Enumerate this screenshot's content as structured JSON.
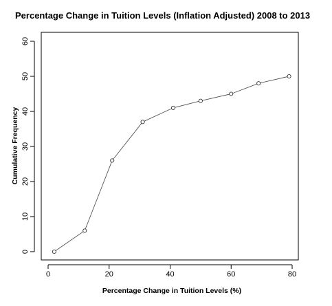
{
  "chart_data": {
    "type": "line",
    "title": "Percentage Change in Tuition Levels (Inflation Adjusted) 2008 to 2013",
    "xlabel": "Percentage Change in Tuition Levels (%)",
    "ylabel": "Cumulative Frequency",
    "xlim": [
      0,
      80
    ],
    "ylim": [
      0,
      60
    ],
    "x_ticks": [
      "0",
      "20",
      "40",
      "60",
      "80"
    ],
    "y_ticks": [
      "0",
      "10",
      "20",
      "30",
      "40",
      "50",
      "60"
    ],
    "grid": false,
    "marker": "open-circle",
    "series": [
      {
        "x": [
          2,
          12,
          21,
          31,
          41,
          50,
          60,
          69,
          79
        ],
        "y": [
          0,
          6,
          26,
          37,
          41,
          43,
          45,
          48,
          50
        ]
      }
    ]
  }
}
